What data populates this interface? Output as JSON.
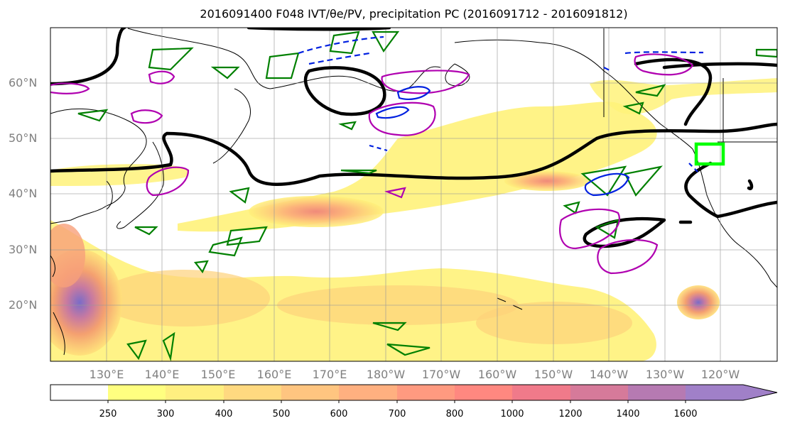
{
  "title": "2016091400 F048 IVT/θe/PV, precipitation PC (2016091712 - 2016091812)",
  "lat_labels": [
    "60°N",
    "50°N",
    "40°N",
    "30°N",
    "20°N"
  ],
  "lon_labels": [
    "130°E",
    "140°E",
    "150°E",
    "160°E",
    "170°E",
    "180°W",
    "170°W",
    "160°W",
    "150°W",
    "140°W",
    "130°W",
    "120°W"
  ],
  "colorbar": {
    "levels": [
      "250",
      "300",
      "400",
      "500",
      "600",
      "700",
      "800",
      "1000",
      "1200",
      "1400",
      "1600"
    ],
    "colors": [
      "#ffffff",
      "#ffff80",
      "#ffef80",
      "#ffd980",
      "#ffc580",
      "#ffb080",
      "#ff9a80",
      "#ff8880",
      "#f07a8a",
      "#d67a9a",
      "#b67ab2",
      "#a080c8"
    ]
  },
  "colors": {
    "ivt_fill": "#fff47a",
    "theta_e_contour": "#000000",
    "pv_green": "#008000",
    "pv_magenta": "#b000b0",
    "pv_blue": "#0020e0",
    "target_box": "#00ff00",
    "grid": "#999999",
    "coast": "#000000"
  }
}
